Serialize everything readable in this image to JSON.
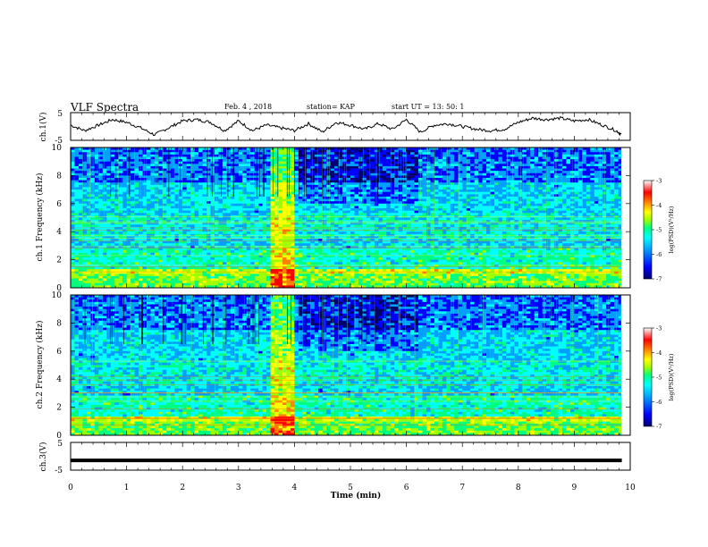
{
  "header": {
    "title": "VLF Spectra",
    "date": "Feb. 4 , 2018",
    "station": "station= KAP",
    "start": "start  UT  =   13: 50: 1"
  },
  "chart_data": [
    {
      "type": "line",
      "panel": "ch1-waveform",
      "ylabel": "ch.1(V)",
      "ylim": [
        -5,
        5
      ],
      "yticks": [
        "5",
        "-5"
      ],
      "xlim": [
        0,
        10
      ],
      "series": [
        {
          "values_description_free": true,
          "x": [
            0.0,
            0.25,
            0.5,
            0.75,
            1.0,
            1.25,
            1.5,
            1.75,
            2.0,
            2.25,
            2.5,
            2.75,
            3.0,
            3.25,
            3.5,
            3.75,
            4.0,
            4.25,
            4.5,
            4.75,
            5.0,
            5.25,
            5.5,
            5.75,
            6.0,
            6.25,
            6.5,
            6.75,
            7.0,
            7.25,
            7.5,
            7.75,
            8.0,
            8.25,
            8.5,
            8.75,
            9.0,
            9.25,
            9.5,
            9.75,
            9.85
          ],
          "y": [
            0.5,
            -1.5,
            0.5,
            2.5,
            1.5,
            -0.5,
            -3.0,
            -0.5,
            2.0,
            2.5,
            1.5,
            -1.5,
            2.0,
            -1.5,
            0.5,
            -0.5,
            -1.5,
            1.0,
            -2.0,
            1.5,
            0.5,
            -1.0,
            1.0,
            -1.0,
            2.5,
            -2.0,
            0.5,
            1.0,
            0.0,
            -1.0,
            -1.5,
            -1.0,
            1.5,
            3.0,
            2.5,
            3.0,
            2.0,
            2.5,
            0.5,
            -1.5,
            -3.0
          ]
        }
      ]
    },
    {
      "type": "heatmap",
      "panel": "ch1-spectrogram",
      "ylabel": "ch.1 Frequency  (kHz)",
      "ylim": [
        0,
        10
      ],
      "yticks": [
        "0",
        "2",
        "4",
        "6",
        "8",
        "10"
      ],
      "xlim": [
        0,
        10
      ],
      "colorbar": {
        "label": "log(PSD)(V²/Hz)",
        "range": [
          -7,
          -3
        ],
        "ticks": [
          "-3",
          "-4",
          "-5",
          "-6",
          "-7"
        ]
      }
    },
    {
      "type": "heatmap",
      "panel": "ch2-spectrogram",
      "ylabel": "ch.2 Frequency  (kHz)",
      "ylim": [
        0,
        10
      ],
      "yticks": [
        "0",
        "2",
        "4",
        "6",
        "8",
        "10"
      ],
      "xlim": [
        0,
        10
      ],
      "colorbar": {
        "label": "log(PSD)(V²/Hz)",
        "range": [
          -7,
          -3
        ],
        "ticks": [
          "-3",
          "-4",
          "-5",
          "-6",
          "-7"
        ]
      }
    },
    {
      "type": "line",
      "panel": "ch3-waveform",
      "ylabel": "ch.3(V)",
      "ylim": [
        -5,
        5
      ],
      "yticks": [
        "5",
        "-5"
      ],
      "xlim": [
        0,
        10
      ],
      "series": [
        {
          "x": [
            0,
            9.85
          ],
          "y": [
            -1.5,
            -1.5
          ]
        }
      ]
    }
  ],
  "xaxis": {
    "label": "Time  (min)",
    "ticks": [
      "0",
      "1",
      "2",
      "3",
      "4",
      "5",
      "6",
      "7",
      "8",
      "9",
      "10"
    ]
  },
  "colors": {
    "waveform": "#000000",
    "colormap": [
      "#00006e",
      "#0000ff",
      "#00a0ff",
      "#00ffff",
      "#00ff80",
      "#a0ff00",
      "#ffff00",
      "#ff8000",
      "#ff0000",
      "#ffffff"
    ]
  }
}
